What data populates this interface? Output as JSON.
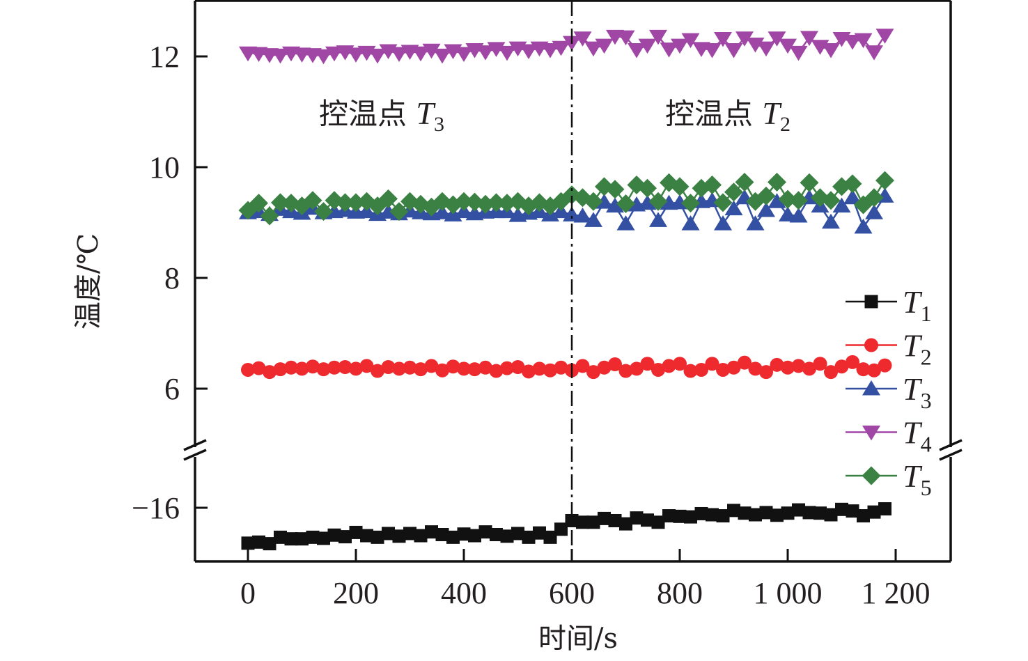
{
  "chart_data": {
    "type": "scatter",
    "title": "",
    "xlabel": "时间/s",
    "ylabel": "温度/℃",
    "xlim": [
      -100,
      1300
    ],
    "xticks": [
      0,
      200,
      400,
      600,
      800,
      1000,
      1200
    ],
    "xtick_labels": [
      "0",
      "200",
      "400",
      "600",
      "800",
      "1 000",
      "1 200"
    ],
    "y_axis_broken": true,
    "y_segments": [
      {
        "ylim": [
          5,
          13
        ],
        "ticks": [
          6,
          8,
          10,
          12
        ],
        "tick_labels": [
          "6",
          "8",
          "10",
          "12"
        ]
      },
      {
        "ylim": [
          -17,
          -15.5
        ],
        "ticks": [
          -16
        ],
        "tick_labels": [
          "−16"
        ]
      }
    ],
    "grid": false,
    "legend_position": "right",
    "divider": {
      "x": 600,
      "style": "dash-dot"
    },
    "annotations": [
      {
        "text": "控温点 ",
        "symbol": "T",
        "sub": "3",
        "region": "left (0–600 s)"
      },
      {
        "text": "控温点 ",
        "symbol": "T",
        "sub": "2",
        "region": "right (600–1200 s)"
      }
    ],
    "x": [
      0,
      20,
      40,
      60,
      80,
      100,
      120,
      140,
      160,
      180,
      200,
      220,
      240,
      260,
      280,
      300,
      320,
      340,
      360,
      380,
      400,
      420,
      440,
      460,
      480,
      500,
      520,
      540,
      560,
      580,
      600,
      620,
      640,
      660,
      680,
      700,
      720,
      740,
      760,
      780,
      800,
      820,
      840,
      860,
      880,
      900,
      920,
      940,
      960,
      980,
      1000,
      1020,
      1040,
      1060,
      1080,
      1100,
      1120,
      1140,
      1160,
      1180
    ],
    "series": [
      {
        "name": "T1",
        "symbol": "T",
        "sub": "1",
        "marker": "square",
        "color": "#111111",
        "values": [
          -16.66,
          -16.64,
          -16.67,
          -16.55,
          -16.58,
          -16.58,
          -16.55,
          -16.57,
          -16.51,
          -16.54,
          -16.46,
          -16.52,
          -16.55,
          -16.48,
          -16.53,
          -16.48,
          -16.52,
          -16.45,
          -16.5,
          -16.55,
          -16.49,
          -16.52,
          -16.45,
          -16.5,
          -16.53,
          -16.48,
          -16.55,
          -16.47,
          -16.55,
          -16.4,
          -16.24,
          -16.27,
          -16.27,
          -16.2,
          -16.24,
          -16.3,
          -16.19,
          -16.23,
          -16.27,
          -16.15,
          -16.16,
          -16.17,
          -16.11,
          -16.13,
          -16.15,
          -16.05,
          -16.1,
          -16.13,
          -16.09,
          -16.14,
          -16.1,
          -16.04,
          -16.09,
          -16.1,
          -16.13,
          -16.03,
          -16.06,
          -16.15,
          -16.08,
          -16.02
        ]
      },
      {
        "name": "T2",
        "symbol": "T",
        "sub": "2",
        "marker": "circle",
        "color": "#ee2a2f",
        "values": [
          6.34,
          6.37,
          6.3,
          6.35,
          6.38,
          6.36,
          6.4,
          6.35,
          6.38,
          6.39,
          6.36,
          6.41,
          6.32,
          6.39,
          6.36,
          6.38,
          6.35,
          6.41,
          6.33,
          6.4,
          6.36,
          6.35,
          6.38,
          6.32,
          6.37,
          6.39,
          6.31,
          6.36,
          6.33,
          6.38,
          6.33,
          6.41,
          6.3,
          6.38,
          6.44,
          6.32,
          6.36,
          6.45,
          6.34,
          6.41,
          6.45,
          6.32,
          6.34,
          6.45,
          6.34,
          6.38,
          6.47,
          6.36,
          6.3,
          6.43,
          6.38,
          6.41,
          6.36,
          6.45,
          6.3,
          6.4,
          6.48,
          6.35,
          6.33,
          6.42
        ]
      },
      {
        "name": "T3",
        "symbol": "T",
        "sub": "3",
        "marker": "triangle-up",
        "color": "#3350a3",
        "values": [
          9.18,
          9.2,
          9.15,
          9.24,
          9.2,
          9.17,
          9.26,
          9.18,
          9.2,
          9.22,
          9.19,
          9.2,
          9.15,
          9.19,
          9.16,
          9.21,
          9.18,
          9.16,
          9.18,
          9.14,
          9.2,
          9.16,
          9.19,
          9.2,
          9.2,
          9.13,
          9.17,
          9.2,
          9.14,
          9.2,
          9.14,
          9.12,
          9.04,
          9.37,
          9.3,
          8.98,
          9.32,
          9.35,
          9.04,
          9.35,
          9.36,
          8.98,
          9.38,
          9.4,
          8.98,
          9.25,
          9.45,
          8.98,
          9.22,
          9.38,
          9.14,
          9.12,
          9.45,
          9.3,
          9.01,
          9.3,
          9.45,
          8.92,
          9.18,
          9.48
        ]
      },
      {
        "name": "T4",
        "symbol": "T",
        "sub": "4",
        "marker": "triangle-down",
        "color": "#a047a6",
        "values": [
          12.06,
          12.05,
          12.03,
          12.02,
          12.06,
          12.04,
          12.03,
          12.01,
          12.06,
          12.08,
          12.04,
          12.07,
          12.02,
          12.1,
          12.05,
          12.09,
          12.06,
          12.11,
          12.02,
          12.1,
          12.05,
          12.12,
          12.08,
          12.14,
          12.07,
          12.15,
          12.1,
          12.15,
          12.12,
          12.16,
          12.25,
          12.33,
          12.15,
          12.2,
          12.36,
          12.35,
          12.12,
          12.2,
          12.36,
          12.13,
          12.2,
          12.3,
          12.14,
          12.12,
          12.32,
          12.12,
          12.33,
          12.22,
          12.15,
          12.33,
          12.2,
          12.07,
          12.34,
          12.18,
          12.12,
          12.32,
          12.27,
          12.3,
          12.08,
          12.38
        ]
      },
      {
        "name": "T5",
        "symbol": "T",
        "sub": "5",
        "marker": "diamond",
        "color": "#3a8143",
        "values": [
          9.22,
          9.35,
          9.12,
          9.36,
          9.35,
          9.3,
          9.4,
          9.2,
          9.4,
          9.36,
          9.36,
          9.38,
          9.3,
          9.43,
          9.2,
          9.38,
          9.33,
          9.28,
          9.38,
          9.32,
          9.38,
          9.37,
          9.33,
          9.36,
          9.35,
          9.38,
          9.3,
          9.36,
          9.3,
          9.38,
          9.5,
          9.45,
          9.38,
          9.65,
          9.6,
          9.34,
          9.68,
          9.62,
          9.38,
          9.72,
          9.65,
          9.35,
          9.62,
          9.68,
          9.36,
          9.55,
          9.73,
          9.38,
          9.48,
          9.73,
          9.42,
          9.4,
          9.72,
          9.45,
          9.4,
          9.65,
          9.7,
          9.32,
          9.45,
          9.76
        ]
      }
    ]
  }
}
